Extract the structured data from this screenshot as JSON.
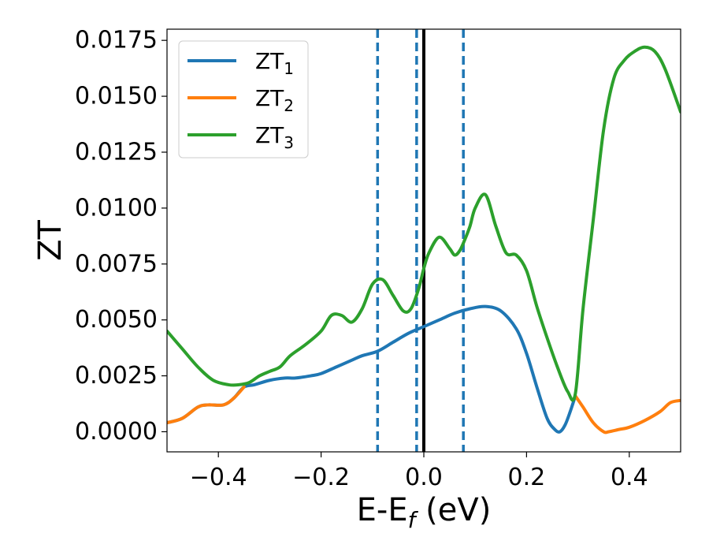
{
  "chart_data": {
    "type": "line",
    "xlabel": "E-E",
    "xlabel_sub": "f",
    "xlabel_unit": " (eV)",
    "ylabel": "ZT",
    "xlim": [
      -0.5,
      0.5
    ],
    "ylim": [
      -0.0009,
      0.018
    ],
    "xticks": [
      -0.4,
      -0.2,
      0.0,
      0.2,
      0.4
    ],
    "xtick_labels": [
      "−0.4",
      "−0.2",
      "0.0",
      "0.2",
      "0.4"
    ],
    "yticks": [
      0.0,
      0.0025,
      0.005,
      0.0075,
      0.01,
      0.0125,
      0.015,
      0.0175
    ],
    "ytick_labels": [
      "0.0000",
      "0.0025",
      "0.0050",
      "0.0075",
      "0.0100",
      "0.0125",
      "0.0150",
      "0.0175"
    ],
    "grid": false,
    "legend_position": "top-left",
    "vlines": [
      {
        "x": -0.09,
        "style": "dashed",
        "color": "#1f77b4"
      },
      {
        "x": -0.014,
        "style": "dashed",
        "color": "#1f77b4"
      },
      {
        "x": 0.077,
        "style": "dashed",
        "color": "#1f77b4"
      },
      {
        "x": 0.0,
        "style": "solid",
        "color": "#000000"
      }
    ],
    "series": [
      {
        "name": "ZT",
        "sub": "1",
        "color": "#1f77b4",
        "x": [
          -0.5,
          -0.47,
          -0.44,
          -0.42,
          -0.39,
          -0.37,
          -0.35,
          -0.33,
          -0.3,
          -0.27,
          -0.25,
          -0.22,
          -0.2,
          -0.17,
          -0.14,
          -0.12,
          -0.09,
          -0.06,
          -0.03,
          0.0,
          0.03,
          0.06,
          0.09,
          0.12,
          0.15,
          0.18,
          0.2,
          0.22,
          0.24,
          0.255,
          0.265,
          0.275,
          0.285,
          0.295
        ],
        "y": [
          0.0004,
          0.0006,
          0.0011,
          0.0012,
          0.0012,
          0.0015,
          0.002,
          0.0021,
          0.0023,
          0.0024,
          0.0024,
          0.0025,
          0.0026,
          0.0029,
          0.0032,
          0.0034,
          0.0036,
          0.004,
          0.0044,
          0.0047,
          0.005,
          0.0053,
          0.0055,
          0.0056,
          0.0054,
          0.0046,
          0.0035,
          0.002,
          0.0006,
          0.0001,
          0.0,
          0.0003,
          0.0009,
          0.0016
        ]
      },
      {
        "name": "ZT",
        "sub": "2",
        "color": "#ff7f0e",
        "x": [
          -0.5,
          -0.47,
          -0.44,
          -0.42,
          -0.39,
          -0.37,
          -0.35,
          0.295,
          0.31,
          0.33,
          0.35,
          0.36,
          0.38,
          0.4,
          0.43,
          0.46,
          0.48,
          0.5
        ],
        "y": [
          0.0004,
          0.0006,
          0.0011,
          0.0012,
          0.0012,
          0.0015,
          0.002,
          0.0016,
          0.0011,
          0.0004,
          0.0,
          0.0,
          0.0001,
          0.0002,
          0.0005,
          0.0009,
          0.0013,
          0.0014
        ]
      },
      {
        "name": "ZT",
        "sub": "3",
        "color": "#2ca02c",
        "x": [
          -0.5,
          -0.47,
          -0.44,
          -0.41,
          -0.38,
          -0.36,
          -0.34,
          -0.32,
          -0.3,
          -0.28,
          -0.26,
          -0.23,
          -0.2,
          -0.18,
          -0.16,
          -0.14,
          -0.12,
          -0.1,
          -0.08,
          -0.06,
          -0.04,
          -0.025,
          -0.01,
          0.0,
          0.01,
          0.03,
          0.05,
          0.06,
          0.07,
          0.08,
          0.09,
          0.1,
          0.12,
          0.14,
          0.16,
          0.18,
          0.2,
          0.22,
          0.24,
          0.26,
          0.28,
          0.295,
          0.31,
          0.33,
          0.35,
          0.37,
          0.39,
          0.41,
          0.43,
          0.45,
          0.47,
          0.5
        ],
        "y": [
          0.0045,
          0.0037,
          0.0029,
          0.0023,
          0.0021,
          0.0021,
          0.0022,
          0.0025,
          0.0027,
          0.0029,
          0.0034,
          0.0039,
          0.0045,
          0.0052,
          0.0052,
          0.0049,
          0.0055,
          0.0066,
          0.0068,
          0.0061,
          0.0054,
          0.0055,
          0.0064,
          0.0073,
          0.008,
          0.0087,
          0.0082,
          0.0079,
          0.0081,
          0.0086,
          0.0092,
          0.01,
          0.0106,
          0.0092,
          0.008,
          0.0079,
          0.0072,
          0.0056,
          0.0042,
          0.0029,
          0.0018,
          0.0017,
          0.0055,
          0.0095,
          0.0135,
          0.0158,
          0.0166,
          0.017,
          0.0172,
          0.017,
          0.0162,
          0.0143
        ]
      }
    ]
  }
}
